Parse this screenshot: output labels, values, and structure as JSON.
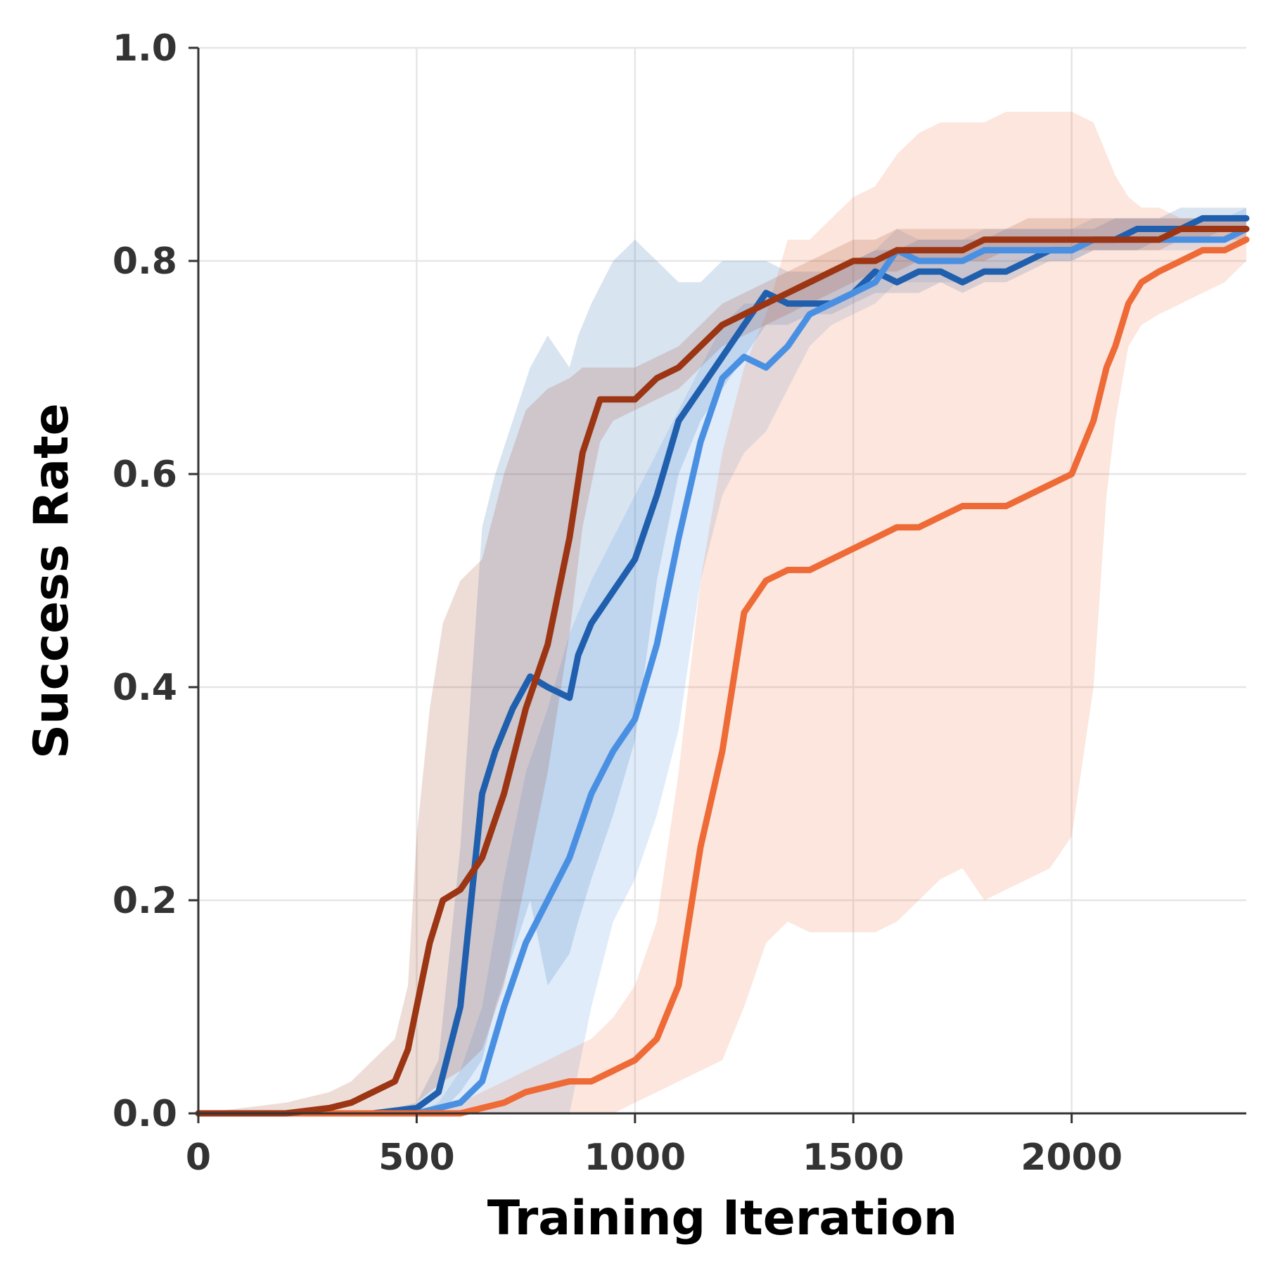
{
  "chart_data": {
    "type": "line",
    "title": "",
    "xlabel": "Training Iteration",
    "ylabel": "Success Rate",
    "xlim": [
      0,
      2400
    ],
    "ylim": [
      0.0,
      1.0
    ],
    "xticks": [
      "0",
      "500",
      "1000",
      "1500",
      "2000"
    ],
    "yticks": [
      "0.0",
      "0.2",
      "0.4",
      "0.6",
      "0.8",
      "1.0"
    ],
    "grid": true,
    "legend": "none",
    "series": [
      {
        "color": "#1f5fad",
        "x": [
          0,
          200,
          400,
          500,
          550,
          600,
          650,
          680,
          720,
          760,
          800,
          850,
          870,
          900,
          950,
          1000,
          1050,
          1100,
          1150,
          1200,
          1250,
          1300,
          1350,
          1400,
          1450,
          1500,
          1550,
          1600,
          1650,
          1700,
          1750,
          1800,
          1850,
          1900,
          1950,
          2000,
          2050,
          2100,
          2150,
          2200,
          2250,
          2300,
          2350,
          2400
        ],
        "y": [
          0.0,
          0.0,
          0.0,
          0.005,
          0.02,
          0.1,
          0.3,
          0.34,
          0.38,
          0.41,
          0.4,
          0.39,
          0.43,
          0.46,
          0.49,
          0.52,
          0.58,
          0.65,
          0.68,
          0.71,
          0.74,
          0.77,
          0.76,
          0.76,
          0.76,
          0.77,
          0.79,
          0.78,
          0.79,
          0.79,
          0.78,
          0.79,
          0.79,
          0.8,
          0.81,
          0.81,
          0.82,
          0.82,
          0.83,
          0.83,
          0.83,
          0.84,
          0.84,
          0.84
        ],
        "band_low": [
          0.0,
          0.0,
          0.0,
          0.0,
          0.0,
          0.02,
          0.05,
          0.1,
          0.15,
          0.2,
          0.12,
          0.15,
          0.18,
          0.22,
          0.28,
          0.35,
          0.5,
          0.6,
          0.65,
          0.68,
          0.71,
          0.74,
          0.74,
          0.75,
          0.75,
          0.76,
          0.77,
          0.77,
          0.77,
          0.78,
          0.77,
          0.78,
          0.78,
          0.79,
          0.8,
          0.8,
          0.81,
          0.81,
          0.81,
          0.82,
          0.82,
          0.82,
          0.83,
          0.83
        ],
        "band_high": [
          0.0,
          0.0,
          0.0,
          0.01,
          0.05,
          0.25,
          0.55,
          0.6,
          0.65,
          0.7,
          0.73,
          0.7,
          0.73,
          0.76,
          0.8,
          0.82,
          0.8,
          0.78,
          0.78,
          0.8,
          0.8,
          0.8,
          0.79,
          0.79,
          0.79,
          0.8,
          0.81,
          0.81,
          0.82,
          0.82,
          0.82,
          0.82,
          0.83,
          0.83,
          0.83,
          0.83,
          0.83,
          0.84,
          0.84,
          0.84,
          0.85,
          0.85,
          0.85,
          0.85
        ]
      },
      {
        "color": "#4a90e2",
        "x": [
          0,
          200,
          400,
          500,
          550,
          600,
          650,
          700,
          750,
          800,
          850,
          900,
          950,
          1000,
          1050,
          1100,
          1150,
          1200,
          1250,
          1300,
          1350,
          1400,
          1450,
          1500,
          1550,
          1600,
          1650,
          1700,
          1750,
          1800,
          1850,
          1900,
          1950,
          2000,
          2050,
          2100,
          2150,
          2200,
          2250,
          2300,
          2350,
          2400
        ],
        "y": [
          0.0,
          0.0,
          0.0,
          0.0,
          0.005,
          0.01,
          0.03,
          0.1,
          0.16,
          0.2,
          0.24,
          0.3,
          0.34,
          0.37,
          0.44,
          0.54,
          0.63,
          0.69,
          0.71,
          0.7,
          0.72,
          0.75,
          0.76,
          0.77,
          0.78,
          0.81,
          0.8,
          0.8,
          0.8,
          0.81,
          0.81,
          0.81,
          0.81,
          0.81,
          0.82,
          0.82,
          0.82,
          0.82,
          0.82,
          0.82,
          0.82,
          0.83
        ],
        "band_low": [
          0.0,
          0.0,
          0.0,
          0.0,
          0.0,
          0.0,
          0.0,
          0.0,
          0.0,
          0.0,
          0.0,
          0.1,
          0.18,
          0.22,
          0.28,
          0.36,
          0.5,
          0.58,
          0.62,
          0.64,
          0.68,
          0.72,
          0.74,
          0.75,
          0.76,
          0.78,
          0.78,
          0.78,
          0.78,
          0.79,
          0.79,
          0.8,
          0.8,
          0.8,
          0.81,
          0.81,
          0.81,
          0.81,
          0.81,
          0.81,
          0.81,
          0.82
        ],
        "band_high": [
          0.0,
          0.0,
          0.0,
          0.0,
          0.01,
          0.04,
          0.1,
          0.22,
          0.32,
          0.38,
          0.45,
          0.5,
          0.54,
          0.58,
          0.62,
          0.66,
          0.7,
          0.74,
          0.76,
          0.76,
          0.77,
          0.78,
          0.79,
          0.8,
          0.81,
          0.83,
          0.82,
          0.82,
          0.82,
          0.83,
          0.83,
          0.83,
          0.83,
          0.83,
          0.84,
          0.84,
          0.84,
          0.84,
          0.84,
          0.84,
          0.84,
          0.85
        ]
      },
      {
        "color": "#ee6a36",
        "x": [
          0,
          200,
          400,
          500,
          600,
          700,
          750,
          800,
          850,
          900,
          950,
          1000,
          1050,
          1100,
          1150,
          1200,
          1250,
          1300,
          1350,
          1400,
          1450,
          1500,
          1550,
          1600,
          1650,
          1700,
          1750,
          1800,
          1850,
          1900,
          1950,
          2000,
          2050,
          2080,
          2100,
          2130,
          2160,
          2200,
          2250,
          2300,
          2350,
          2400
        ],
        "y": [
          0.0,
          0.0,
          0.0,
          0.0,
          0.0,
          0.01,
          0.02,
          0.025,
          0.03,
          0.03,
          0.04,
          0.05,
          0.07,
          0.12,
          0.25,
          0.34,
          0.47,
          0.5,
          0.51,
          0.51,
          0.52,
          0.53,
          0.54,
          0.55,
          0.55,
          0.56,
          0.57,
          0.57,
          0.57,
          0.58,
          0.59,
          0.6,
          0.65,
          0.7,
          0.72,
          0.76,
          0.78,
          0.79,
          0.8,
          0.81,
          0.81,
          0.82
        ],
        "band_low": [
          0.0,
          0.0,
          0.0,
          0.0,
          0.0,
          0.0,
          0.0,
          0.0,
          0.0,
          0.0,
          0.0,
          0.01,
          0.02,
          0.03,
          0.04,
          0.05,
          0.1,
          0.16,
          0.18,
          0.17,
          0.17,
          0.17,
          0.17,
          0.18,
          0.2,
          0.22,
          0.23,
          0.2,
          0.21,
          0.22,
          0.23,
          0.26,
          0.4,
          0.58,
          0.65,
          0.72,
          0.74,
          0.75,
          0.76,
          0.77,
          0.78,
          0.8
        ],
        "band_high": [
          0.0,
          0.0,
          0.0,
          0.0,
          0.01,
          0.03,
          0.04,
          0.05,
          0.06,
          0.07,
          0.09,
          0.12,
          0.18,
          0.32,
          0.5,
          0.62,
          0.7,
          0.75,
          0.82,
          0.82,
          0.84,
          0.86,
          0.87,
          0.9,
          0.92,
          0.93,
          0.93,
          0.93,
          0.94,
          0.94,
          0.94,
          0.94,
          0.93,
          0.9,
          0.88,
          0.86,
          0.85,
          0.85,
          0.84,
          0.84,
          0.84,
          0.84
        ]
      },
      {
        "color": "#9b3513",
        "x": [
          0,
          200,
          300,
          350,
          400,
          450,
          480,
          500,
          530,
          560,
          600,
          650,
          700,
          750,
          800,
          850,
          880,
          920,
          950,
          1000,
          1050,
          1100,
          1150,
          1200,
          1250,
          1300,
          1350,
          1400,
          1450,
          1500,
          1550,
          1600,
          1650,
          1700,
          1750,
          1800,
          1850,
          1900,
          1950,
          2000,
          2050,
          2100,
          2150,
          2200,
          2250,
          2300,
          2350,
          2400
        ],
        "y": [
          0.0,
          0.0,
          0.005,
          0.01,
          0.02,
          0.03,
          0.06,
          0.1,
          0.16,
          0.2,
          0.21,
          0.24,
          0.3,
          0.38,
          0.44,
          0.54,
          0.62,
          0.67,
          0.67,
          0.67,
          0.69,
          0.7,
          0.72,
          0.74,
          0.75,
          0.76,
          0.77,
          0.78,
          0.79,
          0.8,
          0.8,
          0.81,
          0.81,
          0.81,
          0.81,
          0.82,
          0.82,
          0.82,
          0.82,
          0.82,
          0.82,
          0.82,
          0.82,
          0.82,
          0.83,
          0.83,
          0.83,
          0.83
        ],
        "band_low": [
          0.0,
          0.0,
          0.0,
          0.0,
          0.0,
          0.0,
          0.0,
          0.01,
          0.02,
          0.03,
          0.04,
          0.06,
          0.12,
          0.22,
          0.32,
          0.45,
          0.55,
          0.63,
          0.65,
          0.66,
          0.67,
          0.68,
          0.7,
          0.72,
          0.73,
          0.74,
          0.75,
          0.76,
          0.77,
          0.78,
          0.79,
          0.79,
          0.8,
          0.8,
          0.8,
          0.8,
          0.81,
          0.81,
          0.81,
          0.81,
          0.81,
          0.81,
          0.81,
          0.81,
          0.82,
          0.82,
          0.82,
          0.82
        ],
        "band_high": [
          0.0,
          0.01,
          0.02,
          0.03,
          0.05,
          0.07,
          0.12,
          0.26,
          0.38,
          0.46,
          0.5,
          0.52,
          0.6,
          0.66,
          0.68,
          0.69,
          0.7,
          0.7,
          0.7,
          0.7,
          0.71,
          0.72,
          0.74,
          0.76,
          0.77,
          0.78,
          0.79,
          0.8,
          0.81,
          0.82,
          0.82,
          0.83,
          0.83,
          0.83,
          0.83,
          0.83,
          0.83,
          0.84,
          0.84,
          0.84,
          0.84,
          0.84,
          0.84,
          0.84,
          0.84,
          0.84,
          0.84,
          0.84
        ]
      }
    ]
  }
}
